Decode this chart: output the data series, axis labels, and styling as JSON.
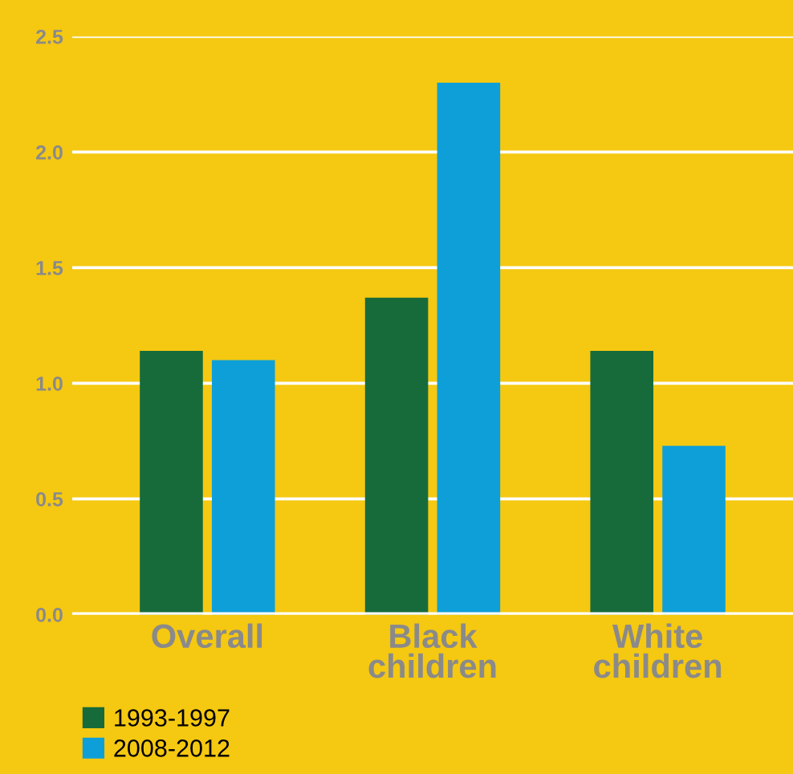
{
  "chart_data": {
    "type": "bar",
    "categories": [
      "Overall",
      "Black\nchildren",
      "White\nchildren"
    ],
    "series": [
      {
        "name": "1993-1997",
        "color": "#176b3b",
        "values": [
          1.14,
          1.37,
          1.14
        ]
      },
      {
        "name": "2008-2012",
        "color": "#0e9fd8",
        "values": [
          1.1,
          2.3,
          0.73
        ]
      }
    ],
    "ylim": [
      0,
      2.5
    ],
    "yticks": [
      {
        "value": 0,
        "label": "0.0"
      },
      0.5,
      {
        "value": 1,
        "label": "1.0"
      },
      1.5,
      {
        "value": 2,
        "label": "2.0"
      },
      2.5
    ],
    "grid": "y",
    "legend": "bottom left"
  }
}
